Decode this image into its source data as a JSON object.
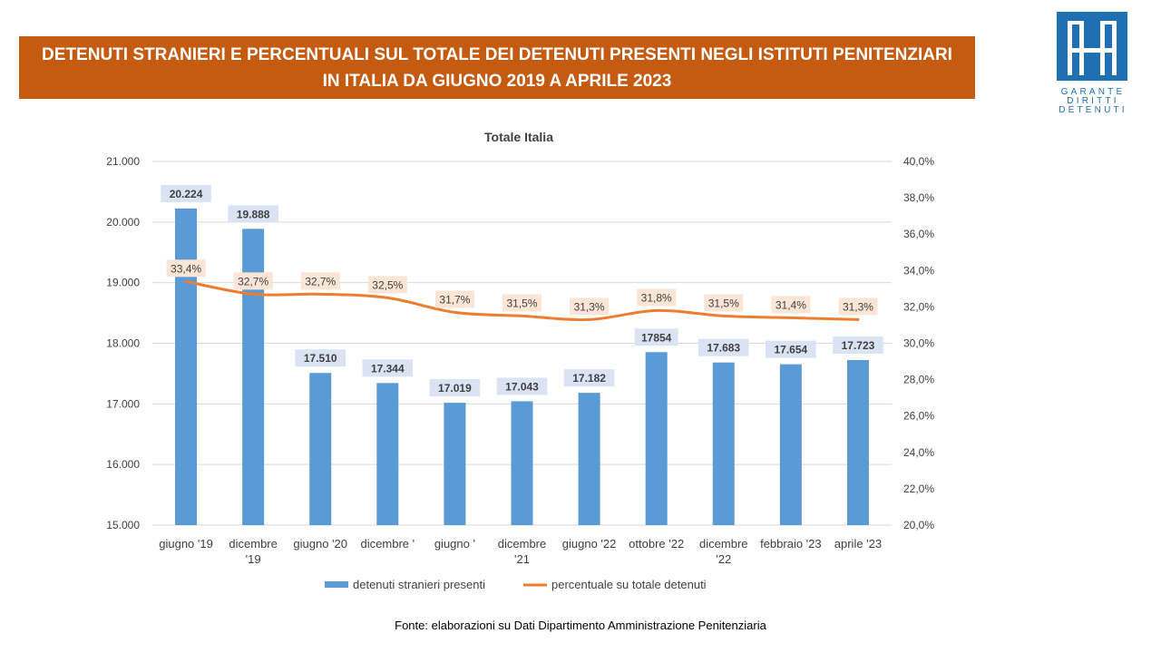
{
  "banner": {
    "line1": "DETENUTI STRANIERI E PERCENTUALI SUL TOTALE DEI DETENUTI PRESENTI NEGLI ISTITUTI PENITENZIARI",
    "line2": "IN ITALIA DA GIUGNO 2019 A APRILE 2023"
  },
  "logo": {
    "line1": "GARANTE",
    "line2": "DIRITTI",
    "line3": "DETENUTI",
    "color": "#1f6fb3"
  },
  "source": "Fonte: elaborazioni su Dati Dipartimento  Amministrazione  Penitenziaria",
  "chart_data": {
    "type": "bar",
    "title": "Totale Italia",
    "categories": [
      [
        "giugno '19"
      ],
      [
        "dicembre",
        "'19"
      ],
      [
        "giugno '20"
      ],
      [
        "dicembre '"
      ],
      [
        "giugno '"
      ],
      [
        "dicembre",
        "'21"
      ],
      [
        "giugno '22"
      ],
      [
        "ottobre '22"
      ],
      [
        "dicembre",
        "'22"
      ],
      [
        "febbraio '23"
      ],
      [
        "aprile '23"
      ]
    ],
    "series": [
      {
        "name": "detenuti stranieri presenti",
        "type": "bar",
        "axis": "left",
        "color": "#5b9bd5",
        "values": [
          20224,
          19888,
          17510,
          17344,
          17019,
          17043,
          17182,
          17854,
          17683,
          17654,
          17723
        ],
        "labels": [
          "20.224",
          "19.888",
          "17.510",
          "17.344",
          "17.019",
          "17.043",
          "17.182",
          "17854",
          "17.683",
          "17.654",
          "17.723"
        ]
      },
      {
        "name": "percentuale su totale detenuti",
        "type": "line",
        "axis": "right",
        "color": "#ed7d31",
        "values": [
          33.4,
          32.7,
          32.7,
          32.5,
          31.7,
          31.5,
          31.3,
          31.8,
          31.5,
          31.4,
          31.3
        ],
        "labels": [
          "33,4%",
          "32,7%",
          "32,7%",
          "32,5%",
          "31,7%",
          "31,5%",
          "31,3%",
          "31,8%",
          "31,5%",
          "31,4%",
          "31,3%"
        ]
      }
    ],
    "y_left": {
      "min": 15000,
      "max": 21000,
      "ticks": [
        "15.000",
        "16.000",
        "17.000",
        "18.000",
        "19.000",
        "20.000",
        "21.000"
      ]
    },
    "y_right": {
      "min": 20,
      "max": 40,
      "ticks": [
        "20,0%",
        "22,0%",
        "24,0%",
        "26,0%",
        "28,0%",
        "30,0%",
        "32,0%",
        "34,0%",
        "36,0%",
        "38,0%",
        "40,0%"
      ]
    },
    "grid": true,
    "legend_position": "bottom"
  }
}
